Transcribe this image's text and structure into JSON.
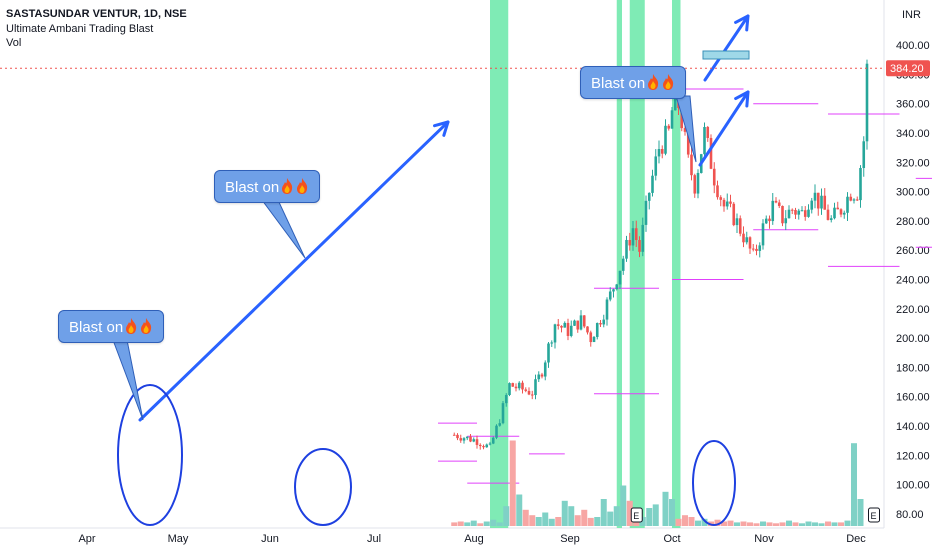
{
  "header": {
    "title": "SASTASUNDAR VENTUR, 1D, NSE",
    "indicator": "Ultimate Ambani Trading Blast",
    "volume": "Vol"
  },
  "annotations": {
    "callout_text": "Blast on",
    "callout_emoji": "fire-icon"
  },
  "colors": {
    "up": "#26a69a",
    "down": "#ef5350",
    "highlight": "#69e8a8",
    "level_line": "#e040fb",
    "arrow": "#2962ff",
    "price_label_bg": "#ef5350",
    "callout_bg": "#6fa0e8"
  },
  "chart_data": {
    "type": "candlestick",
    "instrument": "SASTASUNDAR VENTUR",
    "interval": "1D",
    "exchange": "NSE",
    "currency": "INR",
    "last_price": "384.20",
    "y_ticks": [
      "80.00",
      "100.00",
      "120.00",
      "140.00",
      "160.00",
      "180.00",
      "200.00",
      "220.00",
      "240.00",
      "260.00",
      "280.00",
      "300.00",
      "320.00",
      "340.00",
      "360.00",
      "380.00",
      "400.00"
    ],
    "x_ticks": [
      "Apr",
      "May",
      "Jun",
      "Jul",
      "Aug",
      "Sep",
      "Oct",
      "Nov",
      "Dec"
    ],
    "ylim": [
      72,
      420
    ],
    "highlight_zones": [
      [
        -56,
        -51
      ],
      [
        -17,
        -16
      ],
      [
        -13,
        -9
      ],
      [
        0,
        2
      ]
    ],
    "earnings_markers": [
      -11,
      62
    ],
    "price_path": [
      [
        -67,
        134
      ],
      [
        -60,
        130
      ],
      [
        -56,
        125
      ],
      [
        -53,
        145
      ],
      [
        -50,
        168
      ],
      [
        -46,
        165
      ],
      [
        -43,
        163
      ],
      [
        -40,
        178
      ],
      [
        -36,
        210
      ],
      [
        -32,
        205
      ],
      [
        -28,
        212
      ],
      [
        -25,
        200
      ],
      [
        -21,
        218
      ],
      [
        -18,
        235
      ],
      [
        -15,
        255
      ],
      [
        -12,
        275
      ],
      [
        -10,
        260
      ],
      [
        -7,
        300
      ],
      [
        -4,
        330
      ],
      [
        -1,
        340
      ],
      [
        1,
        370
      ],
      [
        3,
        348
      ],
      [
        5,
        320
      ],
      [
        7,
        305
      ],
      [
        10,
        340
      ],
      [
        13,
        310
      ],
      [
        16,
        290
      ],
      [
        19,
        283
      ],
      [
        22,
        270
      ],
      [
        25,
        255
      ],
      [
        28,
        275
      ],
      [
        31,
        290
      ],
      [
        34,
        282
      ],
      [
        37,
        288
      ],
      [
        40,
        285
      ],
      [
        43,
        300
      ],
      [
        46,
        290
      ],
      [
        49,
        280
      ],
      [
        52,
        288
      ],
      [
        55,
        300
      ],
      [
        57,
        300
      ],
      [
        59,
        335
      ],
      [
        60,
        384
      ]
    ],
    "volume_levels": [
      0.04,
      0.05,
      0.04,
      0.06,
      0.03,
      0.05,
      0.07,
      0.04,
      0.22,
      0.95,
      0.35,
      0.18,
      0.12,
      0.1,
      0.15,
      0.08,
      0.1,
      0.28,
      0.22,
      0.12,
      0.18,
      0.09,
      0.1,
      0.3,
      0.16,
      0.22,
      0.45,
      0.28,
      0.12,
      0.1,
      0.2,
      0.24,
      0.38,
      0.3,
      0.08,
      0.12,
      0.1,
      0.06,
      0.08,
      0.05,
      0.07,
      0.05,
      0.06,
      0.04,
      0.05,
      0.04,
      0.03,
      0.05,
      0.04,
      0.03,
      0.04,
      0.06,
      0.04,
      0.03,
      0.05,
      0.04,
      0.03,
      0.05,
      0.04,
      0.04,
      0.06,
      0.92,
      0.3
    ],
    "level_lines": [
      {
        "x0": -72,
        "x1": -60,
        "y": 142
      },
      {
        "x0": -63,
        "x1": -47,
        "y": 133
      },
      {
        "x0": -72,
        "x1": -60,
        "y": 116
      },
      {
        "x0": -63,
        "x1": -47,
        "y": 101
      },
      {
        "x0": -44,
        "x1": -33,
        "y": 121
      },
      {
        "x0": -24,
        "x1": -4,
        "y": 234
      },
      {
        "x0": -24,
        "x1": -4,
        "y": 162
      },
      {
        "x0": 0,
        "x1": 22,
        "y": 370
      },
      {
        "x0": 0,
        "x1": 22,
        "y": 240
      },
      {
        "x0": 25,
        "x1": 45,
        "y": 360
      },
      {
        "x0": 25,
        "x1": 45,
        "y": 274
      },
      {
        "x0": 48,
        "x1": 70,
        "y": 353
      },
      {
        "x0": 48,
        "x1": 70,
        "y": 249
      },
      {
        "x0": 75,
        "x1": 95,
        "y": 309
      },
      {
        "x0": 75,
        "x1": 95,
        "y": 262
      }
    ]
  }
}
